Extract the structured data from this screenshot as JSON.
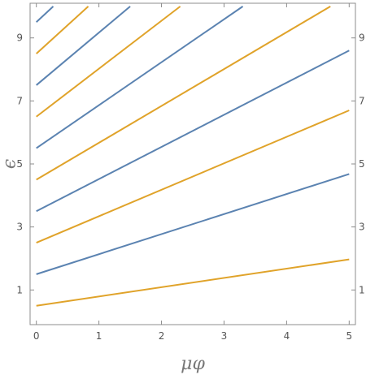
{
  "chart_data": {
    "type": "line",
    "title": "",
    "xlabel": "μφ",
    "ylabel": "ϵ",
    "xlim": [
      -0.1,
      5.1
    ],
    "ylim": [
      -0.1,
      10.1
    ],
    "x_ticks": [
      0,
      1,
      2,
      3,
      4,
      5
    ],
    "y_ticks": [
      1,
      3,
      5,
      7,
      9
    ],
    "grid": false,
    "legend": "none",
    "colors": {
      "blue": "#5b83b1",
      "orange": "#e0a32a",
      "frame": "#8c8c8c"
    },
    "series": [
      {
        "color": "orange",
        "points": [
          [
            0,
            0.5
          ],
          [
            5,
            1.97
          ]
        ]
      },
      {
        "color": "blue",
        "points": [
          [
            0,
            1.5
          ],
          [
            5,
            4.68
          ]
        ]
      },
      {
        "color": "orange",
        "points": [
          [
            0,
            2.5
          ],
          [
            5,
            6.7
          ]
        ]
      },
      {
        "color": "blue",
        "points": [
          [
            0,
            3.5
          ],
          [
            5,
            8.6
          ]
        ]
      },
      {
        "color": "orange",
        "points": [
          [
            0,
            4.5
          ],
          [
            4.7,
            10.0
          ]
        ]
      },
      {
        "color": "blue",
        "points": [
          [
            0,
            5.5
          ],
          [
            3.3,
            10.0
          ]
        ]
      },
      {
        "color": "orange",
        "points": [
          [
            0,
            6.5
          ],
          [
            2.3,
            10.0
          ]
        ]
      },
      {
        "color": "blue",
        "points": [
          [
            0,
            7.5
          ],
          [
            1.5,
            10.0
          ]
        ]
      },
      {
        "color": "orange",
        "points": [
          [
            0,
            8.5
          ],
          [
            0.83,
            10.0
          ]
        ]
      },
      {
        "color": "blue",
        "points": [
          [
            0,
            9.5
          ],
          [
            0.27,
            10.0
          ]
        ]
      }
    ]
  }
}
